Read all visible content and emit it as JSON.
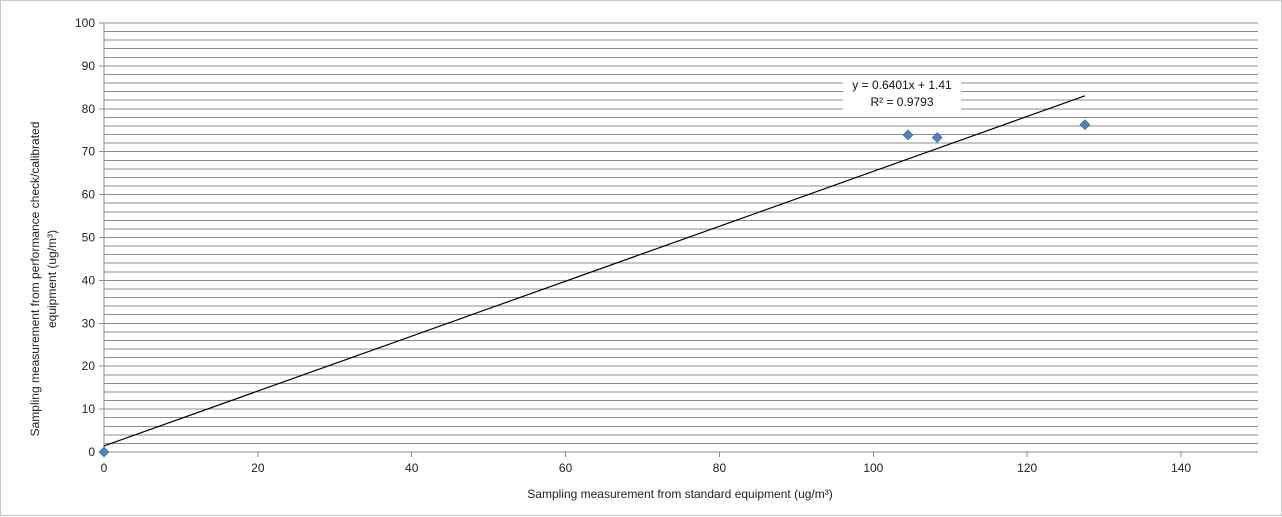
{
  "chart_data": {
    "type": "scatter",
    "title": "",
    "xlabel": "Sampling measurement from standard equipment  (ug/m³)",
    "ylabel_lines": [
      "Sampling measurement from performance check/calibrated",
      "equipment  (ug/m³)"
    ],
    "xlim": [
      0,
      150
    ],
    "ylim": [
      0,
      100
    ],
    "x_ticks": [
      0,
      20,
      40,
      60,
      80,
      100,
      120,
      140
    ],
    "y_ticks": [
      0,
      10,
      20,
      30,
      40,
      50,
      60,
      70,
      80,
      90,
      100
    ],
    "y_minor_step": 2,
    "grid": true,
    "legend": "none",
    "series": [
      {
        "color": "#4f81bd",
        "marker": "diamond",
        "points": [
          {
            "x": 0,
            "y": 0
          },
          {
            "x": 104.5,
            "y": 73.9
          },
          {
            "x": 108.3,
            "y": 73.3
          },
          {
            "x": 127.5,
            "y": 76.3
          }
        ]
      }
    ],
    "trendline": {
      "type": "linear",
      "slope": 0.6401,
      "intercept": 1.41,
      "x_range": [
        0,
        127.5
      ],
      "color": "#000000",
      "equation_label": "y = 0.6401x + 1.41",
      "r2_label": "R² = 0.9793"
    },
    "gridline_color": "#8c8c8c"
  }
}
